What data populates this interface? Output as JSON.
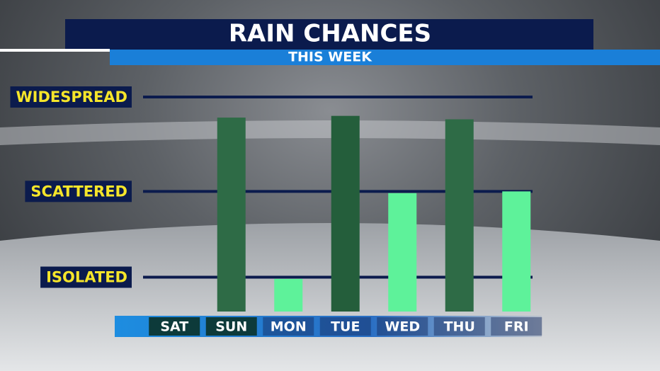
{
  "chart_data": {
    "type": "bar",
    "title": "RAIN CHANCES",
    "subtitle": "THIS WEEK",
    "categories": [
      "SAT",
      "SUN",
      "MON",
      "TUE",
      "WED",
      "THU",
      "FRI"
    ],
    "values": [
      0,
      113,
      19,
      114,
      69,
      112,
      70
    ],
    "colors": [
      "#2e6b46",
      "#2e6b46",
      "#5ef29a",
      "#245e3b",
      "#5ef29a",
      "#2e6b46",
      "#5ef29a"
    ],
    "ylim": [
      0,
      125
    ],
    "yticks": [
      {
        "value": 20,
        "label": "ISOLATED"
      },
      {
        "value": 70,
        "label": "SCATTERED"
      },
      {
        "value": 125,
        "label": "WIDESPREAD"
      }
    ],
    "grid": true
  }
}
